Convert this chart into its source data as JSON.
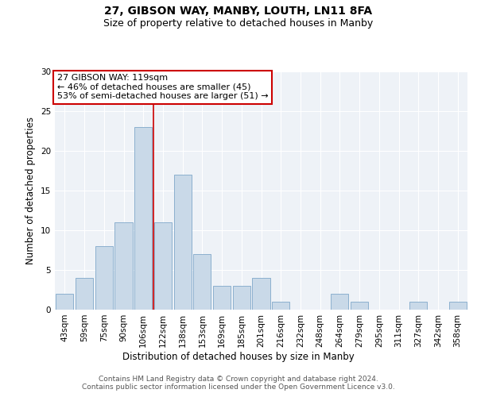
{
  "title1": "27, GIBSON WAY, MANBY, LOUTH, LN11 8FA",
  "title2": "Size of property relative to detached houses in Manby",
  "xlabel": "Distribution of detached houses by size in Manby",
  "ylabel": "Number of detached properties",
  "categories": [
    "43sqm",
    "59sqm",
    "75sqm",
    "90sqm",
    "106sqm",
    "122sqm",
    "138sqm",
    "153sqm",
    "169sqm",
    "185sqm",
    "201sqm",
    "216sqm",
    "232sqm",
    "248sqm",
    "264sqm",
    "279sqm",
    "295sqm",
    "311sqm",
    "327sqm",
    "342sqm",
    "358sqm"
  ],
  "values": [
    2,
    4,
    8,
    11,
    23,
    11,
    17,
    7,
    3,
    3,
    4,
    1,
    0,
    0,
    2,
    1,
    0,
    0,
    1,
    0,
    1
  ],
  "bar_color": "#c9d9e8",
  "bar_edge_color": "#7fa8c9",
  "vline_x_idx": 5,
  "vline_color": "#cc0000",
  "annotation_text": "27 GIBSON WAY: 119sqm\n← 46% of detached houses are smaller (45)\n53% of semi-detached houses are larger (51) →",
  "annotation_box_color": "white",
  "annotation_box_edge_color": "#cc0000",
  "ylim": [
    0,
    30
  ],
  "yticks": [
    0,
    5,
    10,
    15,
    20,
    25,
    30
  ],
  "footer_line1": "Contains HM Land Registry data © Crown copyright and database right 2024.",
  "footer_line2": "Contains public sector information licensed under the Open Government Licence v3.0.",
  "background_color": "#eef2f7",
  "grid_color": "white",
  "title1_fontsize": 10,
  "title2_fontsize": 9,
  "xlabel_fontsize": 8.5,
  "ylabel_fontsize": 8.5,
  "tick_fontsize": 7.5,
  "annotation_fontsize": 8,
  "footer_fontsize": 6.5
}
